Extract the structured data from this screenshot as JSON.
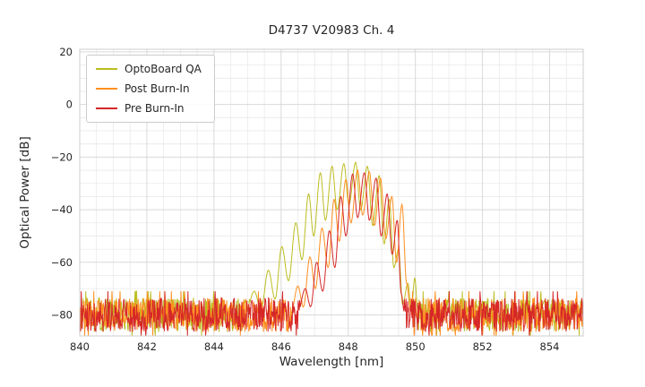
{
  "chart_data": {
    "type": "line",
    "title": "D4737 V20983 Ch. 4",
    "xlabel": "Wavelength [nm]",
    "ylabel": "Optical Power [dB]",
    "xlim": [
      840,
      855
    ],
    "ylim": [
      -88,
      21
    ],
    "x_ticks": [
      840,
      842,
      844,
      846,
      848,
      850,
      852,
      854
    ],
    "y_ticks": [
      20,
      0,
      -20,
      -40,
      -60,
      -80
    ],
    "x_minor_step": 0.5,
    "y_minor_step": 5,
    "grid": true,
    "legend_position": "upper-left",
    "grid_minor_color": "#e9e9e9",
    "grid_major_color": "#d9d9d9",
    "border_color": "#cccccc",
    "text_color": "#262626",
    "noise_floor": {
      "mean": -79.5,
      "min": -86.5,
      "max": -73.5
    },
    "series": [
      {
        "name": "OptoBoard QA",
        "color": "#bcbd22",
        "noise_seed": 13,
        "envelope": [
          [
            844.95,
            -79
          ],
          [
            845.2,
            -71
          ],
          [
            845.4,
            -78
          ],
          [
            845.62,
            -63
          ],
          [
            845.82,
            -74
          ],
          [
            846.02,
            -54
          ],
          [
            846.22,
            -67
          ],
          [
            846.44,
            -45
          ],
          [
            846.62,
            -59
          ],
          [
            846.82,
            -34
          ],
          [
            846.97,
            -50
          ],
          [
            847.17,
            -26
          ],
          [
            847.32,
            -44
          ],
          [
            847.52,
            -23.5
          ],
          [
            847.67,
            -40
          ],
          [
            847.87,
            -22.5
          ],
          [
            848.02,
            -38
          ],
          [
            848.22,
            -22
          ],
          [
            848.37,
            -40
          ],
          [
            848.57,
            -23.5
          ],
          [
            848.73,
            -46
          ],
          [
            848.92,
            -27
          ],
          [
            849.07,
            -53
          ],
          [
            849.22,
            -36
          ],
          [
            849.36,
            -62
          ],
          [
            849.5,
            -55
          ],
          [
            849.62,
            -76
          ],
          [
            849.78,
            -68
          ],
          [
            849.88,
            -79
          ],
          [
            849.98,
            -66
          ],
          [
            850.08,
            -79
          ]
        ]
      },
      {
        "name": "Post Burn-In",
        "color": "#ff8f1f",
        "noise_seed": 47,
        "envelope": [
          [
            846.3,
            -79
          ],
          [
            846.5,
            -69
          ],
          [
            846.66,
            -77
          ],
          [
            846.86,
            -58
          ],
          [
            847.02,
            -70
          ],
          [
            847.22,
            -47
          ],
          [
            847.4,
            -62
          ],
          [
            847.58,
            -36
          ],
          [
            847.73,
            -52
          ],
          [
            847.93,
            -28.5
          ],
          [
            848.08,
            -45
          ],
          [
            848.28,
            -25
          ],
          [
            848.43,
            -42
          ],
          [
            848.63,
            -25.5
          ],
          [
            848.78,
            -46
          ],
          [
            848.96,
            -28
          ],
          [
            849.12,
            -51
          ],
          [
            849.3,
            -35
          ],
          [
            849.44,
            -60
          ],
          [
            849.6,
            -38
          ],
          [
            849.74,
            -68
          ],
          [
            849.86,
            -79
          ]
        ]
      },
      {
        "name": "Pre Burn-In",
        "color": "#d62728",
        "noise_seed": 91,
        "envelope": [
          [
            846.5,
            -79
          ],
          [
            846.72,
            -70
          ],
          [
            846.88,
            -77
          ],
          [
            847.06,
            -60
          ],
          [
            847.24,
            -71
          ],
          [
            847.44,
            -48
          ],
          [
            847.6,
            -62
          ],
          [
            847.78,
            -35
          ],
          [
            847.93,
            -50
          ],
          [
            848.13,
            -26.5
          ],
          [
            848.28,
            -43
          ],
          [
            848.48,
            -26
          ],
          [
            848.63,
            -44
          ],
          [
            848.83,
            -28
          ],
          [
            848.98,
            -50
          ],
          [
            849.16,
            -34
          ],
          [
            849.31,
            -57
          ],
          [
            849.46,
            -44
          ],
          [
            849.58,
            -72
          ],
          [
            849.68,
            -80
          ]
        ]
      }
    ]
  }
}
